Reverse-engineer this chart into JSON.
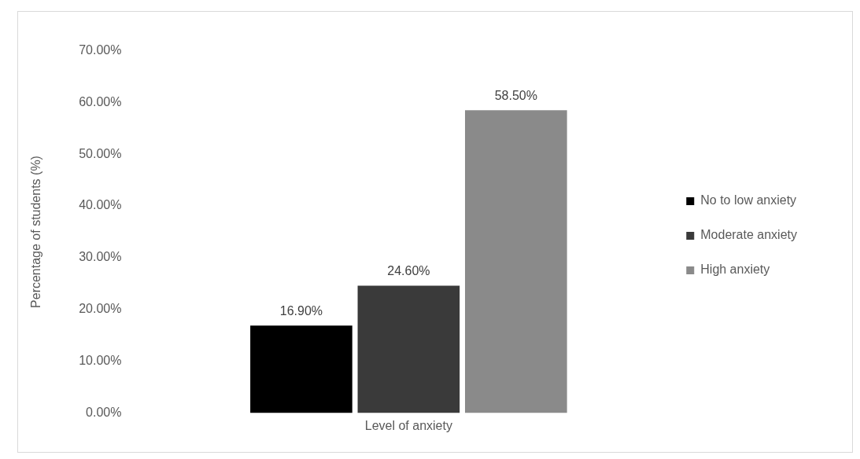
{
  "chart_data": {
    "type": "bar",
    "ylabel": "Percentage of students (%)",
    "xlabel": "Level of anxiety",
    "categories": [
      null
    ],
    "series": [
      {
        "name": "No to low anxiety",
        "color": "#000000",
        "values": [
          16.9
        ],
        "value_labels": [
          "16.90%"
        ]
      },
      {
        "name": "Moderate anxiety",
        "color": "#3a3a3a",
        "values": [
          24.6
        ],
        "value_labels": [
          "24.60%"
        ]
      },
      {
        "name": "High anxiety",
        "color": "#8a8a8a",
        "values": [
          58.5
        ],
        "value_labels": [
          "58.50%"
        ]
      }
    ],
    "ylim": [
      0,
      70
    ],
    "yticks": [
      {
        "value": 0,
        "label": "0.00%"
      },
      {
        "value": 10,
        "label": "10.00%"
      },
      {
        "value": 20,
        "label": "20.00%"
      },
      {
        "value": 30,
        "label": "30.00%"
      },
      {
        "value": 40,
        "label": "40.00%"
      },
      {
        "value": 50,
        "label": "50.00%"
      },
      {
        "value": 60,
        "label": "60.00%"
      },
      {
        "value": 70,
        "label": "70.00%"
      }
    ],
    "grid": false,
    "legend": "right"
  }
}
